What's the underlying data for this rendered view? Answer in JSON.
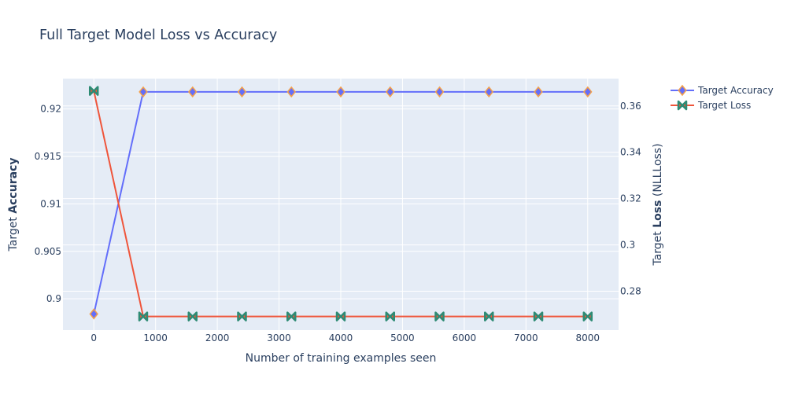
{
  "chart_data": {
    "type": "line",
    "title": "Full Target Model Loss vs Accuracy",
    "xlabel": "Number of training examples seen",
    "ylabel_left": {
      "prefix": "Target ",
      "bold": "Accuracy",
      "suffix": ""
    },
    "ylabel_right": {
      "prefix": "Target ",
      "bold": "Loss",
      "suffix": " (NLLLoss)"
    },
    "x": [
      0,
      800,
      1600,
      2400,
      3200,
      4000,
      4800,
      5600,
      6400,
      7200,
      8000
    ],
    "xlim": [
      -500,
      8500
    ],
    "x_ticks": [
      0,
      1000,
      2000,
      3000,
      4000,
      5000,
      6000,
      7000,
      8000
    ],
    "ylim_left": [
      0.8967,
      0.9232
    ],
    "y_ticks_left": [
      "0.9",
      "0.905",
      "0.91",
      "0.915",
      "0.92"
    ],
    "y_tick_values_left": [
      0.9,
      0.905,
      0.91,
      0.915,
      0.92
    ],
    "ylim_right": [
      0.2632,
      0.3718
    ],
    "y_ticks_right": [
      "0.28",
      "0.3",
      "0.32",
      "0.34",
      "0.36"
    ],
    "y_tick_values_right": [
      0.28,
      0.3,
      0.32,
      0.34,
      0.36
    ],
    "grid": true,
    "legend_position": "top-right",
    "series": [
      {
        "name": "Target Accuracy",
        "axis": "left",
        "marker": "diamond",
        "line_color": "#636efa",
        "marker_fill": "#636efa",
        "marker_edge": "#f4a14c",
        "values": [
          0.8984,
          0.9218,
          0.9218,
          0.9218,
          0.9218,
          0.9218,
          0.9218,
          0.9218,
          0.9218,
          0.9218,
          0.9218
        ]
      },
      {
        "name": "Target Loss",
        "axis": "right",
        "marker": "bowtie",
        "line_color": "#ef553b",
        "marker_fill": "#ef553b",
        "marker_edge": "#2e8b74",
        "values": [
          0.3665,
          0.2691,
          0.2691,
          0.2691,
          0.2691,
          0.2691,
          0.2691,
          0.2691,
          0.2691,
          0.2691,
          0.2691
        ]
      }
    ]
  }
}
